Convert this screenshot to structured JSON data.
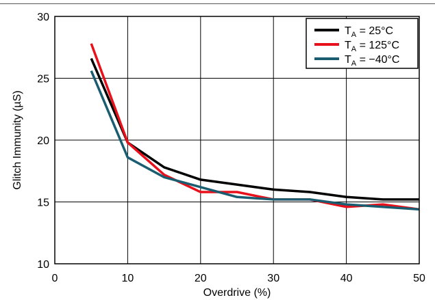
{
  "chart_data": {
    "type": "line",
    "title": "",
    "xlabel": "Overdrive (%)",
    "ylabel": "Glitch Immunity (µS)",
    "xlim": [
      0,
      50
    ],
    "ylim": [
      10,
      30
    ],
    "xticks": [
      0,
      10,
      20,
      30,
      40,
      50
    ],
    "yticks": [
      10,
      15,
      20,
      25,
      30
    ],
    "xtick_labels": [
      "0",
      "10",
      "20",
      "30",
      "40",
      "50"
    ],
    "ytick_labels": [
      "10",
      "15",
      "20",
      "25",
      "30"
    ],
    "grid": true,
    "legend_position": "top-right",
    "series": [
      {
        "name_main": "T",
        "name_sub": "A",
        "name_rest": " = 25°C",
        "color": "#000000",
        "x": [
          5,
          10,
          15,
          20,
          25,
          30,
          35,
          40,
          45,
          50
        ],
        "y": [
          26.6,
          19.8,
          17.8,
          16.8,
          16.4,
          16.0,
          15.8,
          15.4,
          15.2,
          15.2
        ]
      },
      {
        "name_main": "T",
        "name_sub": "A",
        "name_rest": " = 125°C",
        "color": "#e8101a",
        "x": [
          5,
          10,
          15,
          20,
          25,
          30,
          35,
          40,
          45,
          50
        ],
        "y": [
          27.8,
          19.8,
          17.2,
          15.8,
          15.8,
          15.2,
          15.2,
          14.6,
          14.8,
          14.4
        ]
      },
      {
        "name_main": "T",
        "name_sub": "A",
        "name_rest": " = −40°C",
        "color": "#1a5d70",
        "x": [
          5,
          10,
          15,
          20,
          25,
          30,
          35,
          40,
          45,
          50
        ],
        "y": [
          25.6,
          18.6,
          17.0,
          16.2,
          15.4,
          15.2,
          15.2,
          14.8,
          14.6,
          14.4
        ]
      }
    ]
  }
}
